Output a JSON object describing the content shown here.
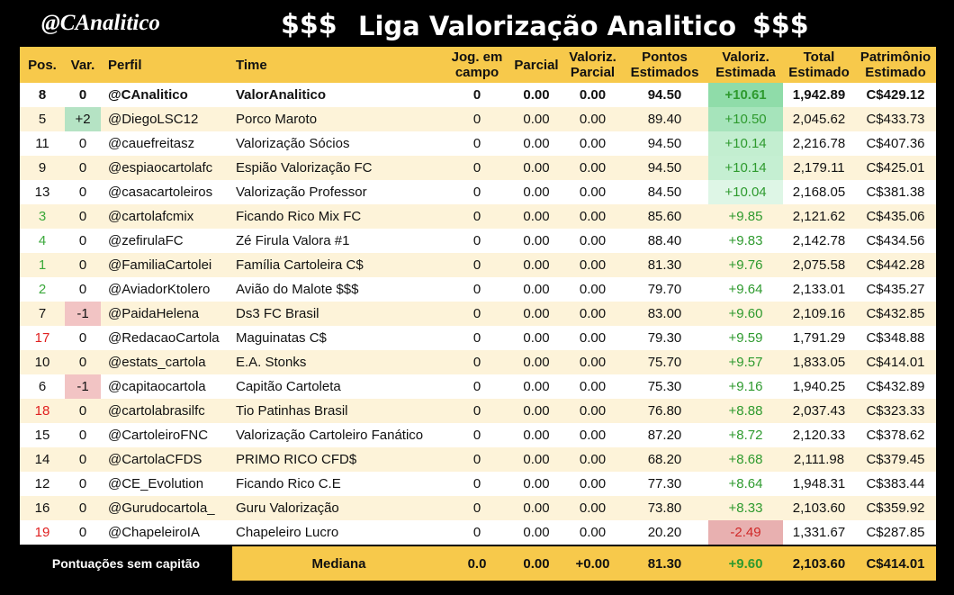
{
  "header": {
    "logo": "@CAnalitico",
    "title_left": "$$$",
    "title": "Liga Valorização Analitico",
    "title_right": "$$$"
  },
  "table": {
    "columns": [
      "Pos.",
      "Var.",
      "Perfil",
      "Time",
      "Jog. em\ncampo",
      "Parcial",
      "Valoriz.\nParcial",
      "Pontos\nEstimados",
      "Valoriz.\nEstimada",
      "Total\nEstimado",
      "Patrimônio\nEstimado"
    ],
    "rows": [
      [
        "8",
        "0",
        "@CAnalitico",
        "ValorAnalitico",
        "0",
        "0.00",
        "0.00",
        "94.50",
        "+10.61",
        "1,942.89",
        "C$429.12"
      ],
      [
        "5",
        "+2",
        "@DiegoLSC12",
        "Porco Maroto",
        "0",
        "0.00",
        "0.00",
        "89.40",
        "+10.50",
        "2,045.62",
        "C$433.73"
      ],
      [
        "11",
        "0",
        "@cauefreitasz",
        "Valorização Sócios",
        "0",
        "0.00",
        "0.00",
        "94.50",
        "+10.14",
        "2,216.78",
        "C$407.36"
      ],
      [
        "9",
        "0",
        "@espiaocartolafc",
        "Espião Valorização FC",
        "0",
        "0.00",
        "0.00",
        "94.50",
        "+10.14",
        "2,179.11",
        "C$425.01"
      ],
      [
        "13",
        "0",
        "@casacartoleiros",
        "Valorização Professor",
        "0",
        "0.00",
        "0.00",
        "84.50",
        "+10.04",
        "2,168.05",
        "C$381.38"
      ],
      [
        "3",
        "0",
        "@cartolafcmix",
        "Ficando Rico Mix FC",
        "0",
        "0.00",
        "0.00",
        "85.60",
        "+9.85",
        "2,121.62",
        "C$435.06"
      ],
      [
        "4",
        "0",
        "@zefirulaFC",
        "Zé Firula Valora #1",
        "0",
        "0.00",
        "0.00",
        "88.40",
        "+9.83",
        "2,142.78",
        "C$434.56"
      ],
      [
        "1",
        "0",
        "@FamiliaCartolei",
        "Família Cartoleira C$",
        "0",
        "0.00",
        "0.00",
        "81.30",
        "+9.76",
        "2,075.58",
        "C$442.28"
      ],
      [
        "2",
        "0",
        "@AviadorKtolero",
        "Avião do Malote $$$",
        "0",
        "0.00",
        "0.00",
        "79.70",
        "+9.64",
        "2,133.01",
        "C$435.27"
      ],
      [
        "7",
        "-1",
        "@PaidaHelena",
        "Ds3 FC Brasil",
        "0",
        "0.00",
        "0.00",
        "83.00",
        "+9.60",
        "2,109.16",
        "C$432.85"
      ],
      [
        "17",
        "0",
        "@RedacaoCartola",
        "Maguinatas C$",
        "0",
        "0.00",
        "0.00",
        "79.30",
        "+9.59",
        "1,791.29",
        "C$348.88"
      ],
      [
        "10",
        "0",
        "@estats_cartola",
        "E.A. Stonks",
        "0",
        "0.00",
        "0.00",
        "75.70",
        "+9.57",
        "1,833.05",
        "C$414.01"
      ],
      [
        "6",
        "-1",
        "@capitaocartola",
        "Capitão Cartoleta",
        "0",
        "0.00",
        "0.00",
        "75.30",
        "+9.16",
        "1,940.25",
        "C$432.89"
      ],
      [
        "18",
        "0",
        "@cartolabrasilfc",
        "Tio Patinhas Brasil",
        "0",
        "0.00",
        "0.00",
        "76.80",
        "+8.88",
        "2,037.43",
        "C$323.33"
      ],
      [
        "15",
        "0",
        "@CartoleiroFNC",
        "Valorização Cartoleiro Fanático",
        "0",
        "0.00",
        "0.00",
        "87.20",
        "+8.72",
        "2,120.33",
        "C$378.62"
      ],
      [
        "14",
        "0",
        "@CartolaCFDS",
        "PRIMO RICO CFD$",
        "0",
        "0.00",
        "0.00",
        "68.20",
        "+8.68",
        "2,111.98",
        "C$379.45"
      ],
      [
        "12",
        "0",
        "@CE_Evolution",
        "Ficando Rico C.E",
        "0",
        "0.00",
        "0.00",
        "77.30",
        "+8.64",
        "1,948.31",
        "C$383.44"
      ],
      [
        "16",
        "0",
        "@Gurudocartola_",
        "Guru Valorização",
        "0",
        "0.00",
        "0.00",
        "73.80",
        "+8.33",
        "2,103.60",
        "C$359.92"
      ],
      [
        "19",
        "0",
        "@ChapeleiroIA",
        "Chapeleiro Lucro",
        "0",
        "0.00",
        "0.00",
        "20.20",
        "-2.49",
        "1,331.67",
        "C$287.85"
      ]
    ],
    "pos_colors": [
      null,
      null,
      null,
      null,
      null,
      "#3aa83a",
      "#3aa83a",
      "#3aa83a",
      "#3aa83a",
      null,
      "#e02020",
      null,
      null,
      "#e02020",
      null,
      null,
      null,
      null,
      "#e02020"
    ],
    "var_backgrounds": [
      null,
      "#b5e3c4",
      null,
      null,
      null,
      null,
      null,
      null,
      null,
      "#f2c4c4",
      null,
      null,
      "#f2c4c4",
      null,
      null,
      null,
      null,
      null,
      null
    ],
    "valoriz_backgrounds": [
      "#8fdca9",
      "#a6e4bb",
      "#c3eed0",
      "#c5efd2",
      "#def6e6",
      null,
      null,
      null,
      null,
      null,
      null,
      null,
      null,
      null,
      null,
      null,
      null,
      null,
      "#e8b0b0"
    ],
    "footer": {
      "label": "Pontuações sem capitão",
      "cells": [
        "Mediana",
        "0.0",
        "0.00",
        "+0.00",
        "81.30",
        "+9.60",
        "2,103.60",
        "C$414.01"
      ]
    }
  }
}
